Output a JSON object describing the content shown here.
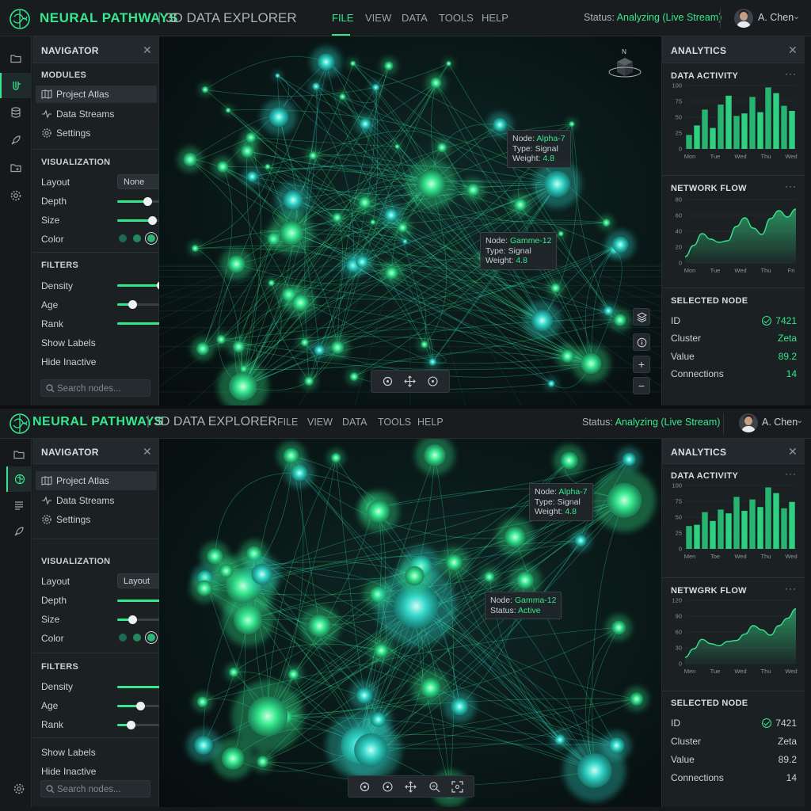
{
  "colors": {
    "accent": "#35e88e",
    "teal": "#33d6c8",
    "background": "#15191c",
    "panel": "#1b2023"
  },
  "instances": [
    {
      "header": {
        "brand": "NEURAL PATHWAYS",
        "separator": "|",
        "subtitle": "3D DATA EXPLORER",
        "menu": [
          "FILE",
          "VIEW",
          "DATA",
          "TOOLS",
          "HELP"
        ],
        "active_menu": "FILE",
        "status_label": "Status:",
        "status_value": "Analyzing (Live Stream)",
        "user": "A. Chen"
      },
      "rail_icons": [
        "folder-icon",
        "neural-network-icon",
        "database-icon",
        "rocket-icon",
        "folder-open-icon",
        "gear-icon"
      ],
      "navigator": {
        "title": "NAVIGATOR",
        "modules_title": "MODULES",
        "modules": [
          "Project Atlas",
          "Data Streams",
          "Settings"
        ],
        "visualization_title": "VISUALIZATION",
        "layout_label": "Layout",
        "layout_value": "None",
        "depth_label": "Depth",
        "depth": 0.46,
        "size_label": "Size",
        "size": 0.53,
        "color_label": "Color",
        "color_options": [
          "#1f6b4f",
          "#23875f",
          "#2fb577",
          "#35d482",
          "#4ee08f"
        ],
        "color_selected": 2,
        "filters_title": "FILTERS",
        "density_label": "Density",
        "density": 0.66,
        "age_label": "Age",
        "age": 0.23,
        "rank_label": "Rank",
        "rank": 0.95,
        "show_labels_label": "Show Labels",
        "show_labels": true,
        "hide_inactive_label": "Hide Inactive",
        "hide_inactive": false,
        "search_placeholder": "Search nodes..."
      },
      "viewport": {
        "compass": "N",
        "tooltips": [
          {
            "node_label": "Node:",
            "node": "Alpha-7",
            "type_label": "Type:",
            "type": "Signal",
            "weight_label": "Weight:",
            "weight": "4.8"
          },
          {
            "node_label": "Node:",
            "node": "Gamme-12",
            "type_label": "Type:",
            "type": "Signal",
            "weight_label": "Weight:",
            "weight": "4.8"
          }
        ],
        "toolbar_icons": [
          "target-icon",
          "move-icon",
          "rotate-icon"
        ],
        "side_buttons": [
          "layers-icon",
          "info-icon",
          "zoom-in-icon",
          "zoom-out-icon"
        ]
      },
      "analytics": {
        "title": "ANALYTICS",
        "data_activity": {
          "title": "DATA ACTIVITY",
          "chart_data": {
            "type": "bar",
            "ylim": [
              0,
              100
            ],
            "yticks": [
              0,
              25,
              50,
              75,
              100
            ],
            "x_labels": [
              "Mon",
              "Tue",
              "Wed",
              "Thu",
              "Wed"
            ],
            "values": [
              22,
              37,
              62,
              33,
              70,
              84,
              52,
              56,
              82,
              58,
              97,
              88,
              68,
              60
            ]
          }
        },
        "network_flow": {
          "title": "NETWORK FLOW",
          "chart_data": {
            "type": "area",
            "ylim": [
              0,
              80
            ],
            "yticks": [
              0,
              20,
              40,
              60,
              80
            ],
            "x_labels": [
              "Mon",
              "Tue",
              "Wed",
              "Thu",
              "Fri"
            ],
            "values": [
              8,
              22,
              37,
              30,
              26,
              28,
              46,
              57,
              44,
              36,
              56,
              66,
              58,
              68
            ]
          }
        },
        "selected_node": {
          "title": "SELECTED NODE",
          "rows": [
            {
              "label": "ID",
              "value": "7421"
            },
            {
              "label": "Cluster",
              "value": "Zeta"
            },
            {
              "label": "Value",
              "value": "89.2"
            },
            {
              "label": "Connections",
              "value": "14"
            }
          ]
        }
      }
    },
    {
      "header": {
        "brand": "NEURAL PATHWAYS",
        "separator": "|",
        "subtitle": "3D DATA EXPLORER",
        "menu": [
          "FILE",
          "VIEW",
          "DATA",
          "TOOLS",
          "HELP"
        ],
        "active_menu": "",
        "status_label": "Status:",
        "status_value": "Analyzing (Live Stream)",
        "user": "A. Chen"
      },
      "rail_icons": [
        "folder-icon",
        "neural-network-icon",
        "list-icon",
        "rocket-icon",
        "gear-icon"
      ],
      "navigator": {
        "title": "NAVIGATOR",
        "modules_title": "",
        "modules": [
          "Project Atlas",
          "Data Streams",
          "Settings"
        ],
        "visualization_title": "VISUALIZATION",
        "layout_label": "Layout",
        "layout_value": "Layout",
        "depth_label": "Depth",
        "depth": 0.74,
        "size_label": "Size",
        "size": 0.23,
        "color_label": "Color",
        "color_options": [
          "#1f6b4f",
          "#23875f",
          "#2fb577",
          "#35d482",
          "#4ee08f"
        ],
        "color_selected": 2,
        "filters_title": "FILTERS",
        "density_label": "Density",
        "density": 0.77,
        "age_label": "Age",
        "age": 0.35,
        "rank_label": "Rank",
        "rank": 0.2,
        "show_labels_label": "Show Labels",
        "show_labels": true,
        "hide_inactive_label": "Hide Inactive",
        "hide_inactive": false,
        "search_placeholder": "Search nodes..."
      },
      "viewport": {
        "tooltips": [
          {
            "node_label": "Node:",
            "node": "Alpha-7",
            "type_label": "Type:",
            "type": "Signal",
            "weight_label": "Weight:",
            "weight": "4.8"
          },
          {
            "node_label": "Node:",
            "node": "Gamma-12",
            "type_label": "Status:",
            "type": "Active"
          }
        ],
        "toolbar_icons": [
          "target-icon",
          "rotate-icon",
          "move-icon",
          "zoom-icon",
          "fit-icon"
        ]
      },
      "analytics": {
        "title": "ANALYTICS",
        "data_activity": {
          "title": "DATA ACTIVITY",
          "chart_data": {
            "type": "bar",
            "ylim": [
              0,
              100
            ],
            "yticks": [
              0,
              25,
              50,
              75,
              100
            ],
            "x_labels": [
              "Men",
              "Toe",
              "Wed",
              "Thu",
              "Wed"
            ],
            "values": [
              36,
              38,
              58,
              44,
              62,
              56,
              82,
              60,
              78,
              66,
              97,
              88,
              64,
              74
            ]
          }
        },
        "network_flow": {
          "title": "NETWGRK FLOW",
          "chart_data": {
            "type": "area",
            "ylim": [
              0,
              120
            ],
            "yticks": [
              0,
              30,
              60,
              90,
              120
            ],
            "x_labels": [
              "Men",
              "Tue",
              "Wed",
              "Thu",
              "Wed"
            ],
            "values": [
              12,
              28,
              46,
              38,
              34,
              42,
              44,
              56,
              72,
              64,
              54,
              72,
              86,
              104
            ]
          }
        },
        "selected_node": {
          "title": "SELECTED NODE",
          "rows": [
            {
              "label": "ID",
              "value": "7421"
            },
            {
              "label": "Cluster",
              "value": "Zeta"
            },
            {
              "label": "Value",
              "value": "89.2"
            },
            {
              "label": "Connections",
              "value": "14"
            }
          ]
        }
      }
    }
  ]
}
